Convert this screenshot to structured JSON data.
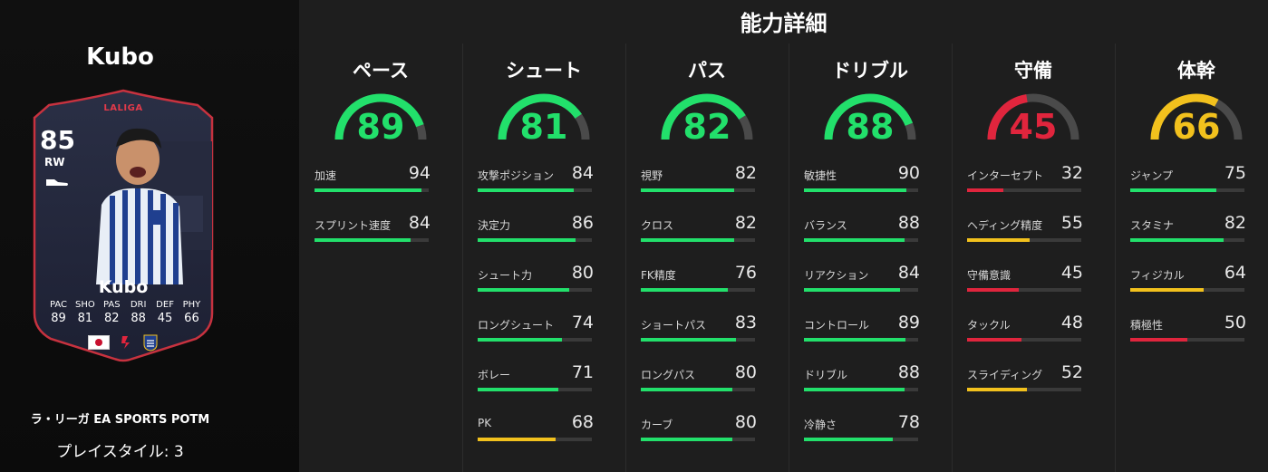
{
  "colors": {
    "green": "#22e06b",
    "yellow": "#f2c11d",
    "red": "#e0253d",
    "track": "#4a4a4a"
  },
  "left": {
    "player_name": "Kubo",
    "card": {
      "league": "LALIGA",
      "rating": "85",
      "position": "RW",
      "name": "Kubo",
      "stats": [
        {
          "label": "PAC",
          "value": "89"
        },
        {
          "label": "SHO",
          "value": "81"
        },
        {
          "label": "PAS",
          "value": "82"
        },
        {
          "label": "DRI",
          "value": "88"
        },
        {
          "label": "DEF",
          "value": "45"
        },
        {
          "label": "PHY",
          "value": "66"
        }
      ],
      "icons": [
        "japan-flag-icon",
        "laliga-icon",
        "club-crest-icon",
        "boot-icon"
      ]
    },
    "subtitle": "ラ・リーガ EA SPORTS POTM",
    "playstyle": "プレイスタイル: 3"
  },
  "details": {
    "title": "能力詳細",
    "columns": [
      {
        "title": "ペース",
        "value": 89,
        "color": "#22e06b",
        "stats": [
          {
            "name": "加速",
            "value": 94,
            "color": "#22e06b"
          },
          {
            "name": "スプリント速度",
            "value": 84,
            "color": "#22e06b"
          }
        ]
      },
      {
        "title": "シュート",
        "value": 81,
        "color": "#22e06b",
        "stats": [
          {
            "name": "攻撃ポジション",
            "value": 84,
            "color": "#22e06b"
          },
          {
            "name": "決定力",
            "value": 86,
            "color": "#22e06b"
          },
          {
            "name": "シュート力",
            "value": 80,
            "color": "#22e06b"
          },
          {
            "name": "ロングシュート",
            "value": 74,
            "color": "#22e06b"
          },
          {
            "name": "ボレー",
            "value": 71,
            "color": "#22e06b"
          },
          {
            "name": "PK",
            "value": 68,
            "color": "#f2c11d"
          }
        ]
      },
      {
        "title": "パス",
        "value": 82,
        "color": "#22e06b",
        "stats": [
          {
            "name": "視野",
            "value": 82,
            "color": "#22e06b"
          },
          {
            "name": "クロス",
            "value": 82,
            "color": "#22e06b"
          },
          {
            "name": "FK精度",
            "value": 76,
            "color": "#22e06b"
          },
          {
            "name": "ショートパス",
            "value": 83,
            "color": "#22e06b"
          },
          {
            "name": "ロングパス",
            "value": 80,
            "color": "#22e06b"
          },
          {
            "name": "カーブ",
            "value": 80,
            "color": "#22e06b"
          }
        ]
      },
      {
        "title": "ドリブル",
        "value": 88,
        "color": "#22e06b",
        "stats": [
          {
            "name": "敏捷性",
            "value": 90,
            "color": "#22e06b"
          },
          {
            "name": "バランス",
            "value": 88,
            "color": "#22e06b"
          },
          {
            "name": "リアクション",
            "value": 84,
            "color": "#22e06b"
          },
          {
            "name": "コントロール",
            "value": 89,
            "color": "#22e06b"
          },
          {
            "name": "ドリブル",
            "value": 88,
            "color": "#22e06b"
          },
          {
            "name": "冷静さ",
            "value": 78,
            "color": "#22e06b"
          }
        ]
      },
      {
        "title": "守備",
        "value": 45,
        "color": "#e0253d",
        "stats": [
          {
            "name": "インターセプト",
            "value": 32,
            "color": "#e0253d"
          },
          {
            "name": "ヘディング精度",
            "value": 55,
            "color": "#f2c11d"
          },
          {
            "name": "守備意識",
            "value": 45,
            "color": "#e0253d"
          },
          {
            "name": "タックル",
            "value": 48,
            "color": "#e0253d"
          },
          {
            "name": "スライディング",
            "value": 52,
            "color": "#f2c11d"
          }
        ]
      },
      {
        "title": "体幹",
        "value": 66,
        "color": "#f2c11d",
        "stats": [
          {
            "name": "ジャンプ",
            "value": 75,
            "color": "#22e06b"
          },
          {
            "name": "スタミナ",
            "value": 82,
            "color": "#22e06b"
          },
          {
            "name": "フィジカル",
            "value": 64,
            "color": "#f2c11d"
          },
          {
            "name": "積極性",
            "value": 50,
            "color": "#e0253d"
          }
        ]
      }
    ]
  }
}
